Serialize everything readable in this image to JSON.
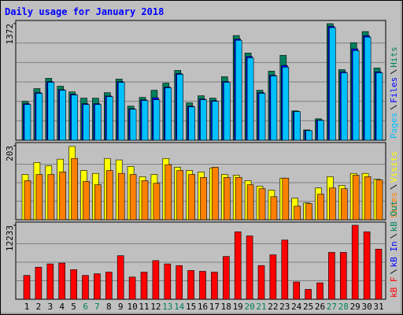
{
  "chart_data": {
    "type": "bar",
    "title": "Daily usage for January 2018",
    "categories": [
      "1",
      "2",
      "3",
      "4",
      "5",
      "6",
      "7",
      "8",
      "9",
      "10",
      "11",
      "12",
      "13",
      "14",
      "15",
      "16",
      "17",
      "18",
      "19",
      "20",
      "21",
      "22",
      "23",
      "24",
      "25",
      "26",
      "27",
      "28",
      "29",
      "30",
      "31"
    ],
    "category_colors": [
      "#000000",
      "#000000",
      "#000000",
      "#000000",
      "#000000",
      "#00805c",
      "#00805c",
      "#000000",
      "#000000",
      "#000000",
      "#000000",
      "#000000",
      "#00805c",
      "#00805c",
      "#000000",
      "#000000",
      "#000000",
      "#000000",
      "#000000",
      "#00805c",
      "#00805c",
      "#000000",
      "#000000",
      "#000000",
      "#000000",
      "#000000",
      "#00805c",
      "#00805c",
      "#000000",
      "#000000",
      "#000000"
    ],
    "panels": [
      {
        "ylim": [
          0,
          1372
        ],
        "yticks": [
          1372
        ],
        "series": [
          {
            "name": "Hits",
            "color": "#00805c",
            "values": [
              457,
              607,
              728,
              635,
              569,
              495,
              495,
              560,
              719,
              401,
              504,
              588,
              672,
              821,
              439,
              523,
              495,
              747,
              1232,
              1026,
              588,
              812,
              999,
              345,
              121,
              252,
              1372,
              831,
              1148,
              1279,
              849
            ]
          },
          {
            "name": "Files",
            "color": "#0000ff",
            "values": [
              430,
              560,
              690,
              595,
              540,
              430,
              430,
              520,
              690,
              370,
              475,
              500,
              625,
              785,
              400,
              485,
              465,
              690,
              1190,
              985,
              560,
              765,
              880,
              338,
              114,
              238,
              1340,
              805,
              1075,
              1230,
              805
            ]
          },
          {
            "name": "Pages",
            "color": "#00c0ff",
            "values": [
              420,
              551,
              681,
              588,
              532,
              420,
              420,
              513,
              681,
              364,
              467,
              476,
              616,
              775,
              392,
              476,
              457,
              681,
              1176,
              970,
              551,
              756,
              859,
              336,
              112,
              233,
              1325,
              793,
              1055,
              1213,
              793
            ]
          }
        ]
      },
      {
        "ylim": [
          0,
          203
        ],
        "yticks": [
          203
        ],
        "series": [
          {
            "name": "Visits",
            "color": "#ffff00",
            "values": [
              124,
              157,
              148,
              166,
              201,
              135,
              127,
              168,
              164,
              146,
              118,
              124,
              168,
              144,
              135,
              131,
              142,
              124,
              122,
              107,
              92,
              81,
              114,
              59,
              46,
              87,
              118,
              94,
              127,
              127,
              111
            ]
          },
          {
            "name": "Sites",
            "color": "#ff8000",
            "values": [
              107,
              124,
              124,
              131,
              168,
              105,
              96,
              135,
              127,
              124,
              107,
              100,
              151,
              135,
              124,
              116,
              144,
              116,
              116,
              96,
              85,
              63,
              114,
              37,
              44,
              70,
              87,
              85,
              122,
              118,
              109
            ]
          }
        ]
      },
      {
        "ylim": [
          0,
          12233
        ],
        "yticks": [
          12233
        ],
        "series": [
          {
            "name": "kB F",
            "color": "#ff0000",
            "values": [
              3942,
              5300,
              5843,
              5979,
              4892,
              3942,
              4213,
              4485,
              7203,
              3669,
              4485,
              6387,
              5843,
              5572,
              4756,
              4621,
              4485,
              7067,
              11144,
              10465,
              5572,
              7339,
              9785,
              2854,
              1631,
              2718,
              7746,
              7746,
              12233,
              11144,
              8290
            ]
          }
        ],
        "other_legend_entries": [
          {
            "name": "kB In",
            "color": "#0000ff"
          },
          {
            "name": "kB Out",
            "color": "#00805c"
          }
        ]
      }
    ]
  }
}
